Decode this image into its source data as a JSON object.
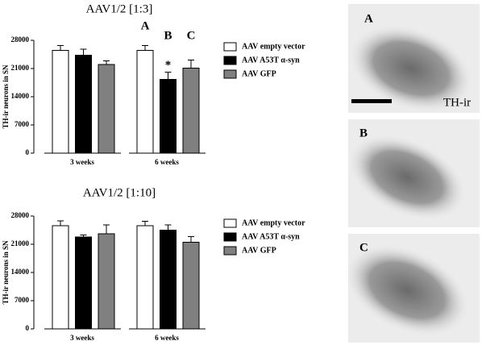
{
  "chart_data": [
    {
      "type": "bar",
      "title": "AAV1/2 [1:3]",
      "y_label": "TH-ir neurons in SN",
      "categories": [
        "3 weeks",
        "6 weeks"
      ],
      "series": [
        {
          "name": "AAV empty vector",
          "color": "#ffffff",
          "values": [
            25500,
            25500
          ],
          "errors": [
            1200,
            1200
          ]
        },
        {
          "name": "AAV A53T α-syn",
          "color": "#000000",
          "values": [
            24300,
            18300
          ],
          "errors": [
            1500,
            1800
          ]
        },
        {
          "name": "AAV GFP",
          "color": "#808080",
          "values": [
            22000,
            21100
          ],
          "errors": [
            900,
            2000
          ]
        }
      ],
      "ylim": [
        0,
        28000
      ],
      "yticks": [
        0,
        7000,
        14000,
        21000,
        28000
      ],
      "annotations": [
        "A",
        "B",
        "C"
      ],
      "significance": "*"
    },
    {
      "type": "bar",
      "title": "AAV1/2 [1:10]",
      "y_label": "TH-ir neurons in SN",
      "categories": [
        "3 weeks",
        "6 weeks"
      ],
      "series": [
        {
          "name": "AAV empty vector",
          "color": "#ffffff",
          "values": [
            25600,
            25600
          ],
          "errors": [
            1200,
            1100
          ]
        },
        {
          "name": "AAV A53T α-syn",
          "color": "#000000",
          "values": [
            22800,
            24500
          ],
          "errors": [
            500,
            1300
          ]
        },
        {
          "name": "AAV GFP",
          "color": "#808080",
          "values": [
            23600,
            21500
          ],
          "errors": [
            2200,
            1400
          ]
        }
      ],
      "ylim": [
        0,
        28000
      ],
      "yticks": [
        0,
        7000,
        14000,
        21000,
        28000
      ]
    }
  ],
  "micrographs": {
    "panels": [
      "A",
      "B",
      "C"
    ],
    "stain": "TH-ir"
  }
}
